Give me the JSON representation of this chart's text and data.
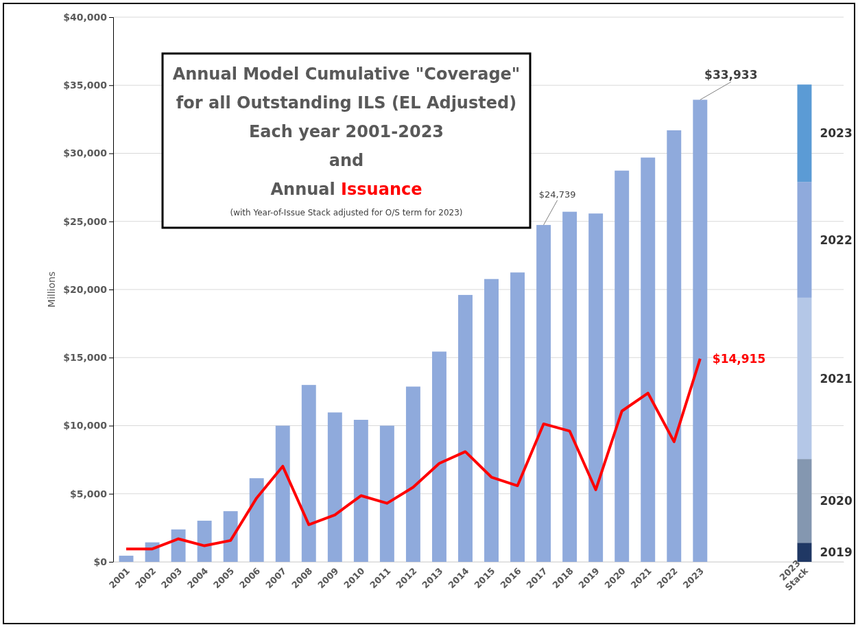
{
  "chart_data": {
    "type": "bar",
    "title": "Annual Model Cumulative \"Coverage\"\nfor all Outstanding ILS (EL Adjusted)\nEach year 2001-2023\nand\nAnnual Issuance",
    "subtitle": "(with Year-of-Issue Stack adjusted for O/S term for 2023)",
    "ylabel": "Millions",
    "categories": [
      "2001",
      "2002",
      "2003",
      "2004",
      "2005",
      "2006",
      "2007",
      "2008",
      "2009",
      "2010",
      "2011",
      "2012",
      "2013",
      "2014",
      "2015",
      "2016",
      "2017",
      "2018",
      "2019",
      "2020",
      "2021",
      "2022",
      "2023",
      null,
      null,
      null,
      "2023 Stack",
      null
    ],
    "stacked": true,
    "series": [
      {
        "color": "#8faadc",
        "values": [
          450,
          1430,
          2380,
          3020,
          3720,
          6140,
          10000,
          12990,
          10970,
          10430,
          10000,
          12870,
          15440,
          19600,
          20770,
          21250,
          24739,
          25710,
          25580,
          28730,
          29690,
          31690,
          33933,
          null,
          null,
          null,
          null,
          null
        ],
        "value_labels": [
          null,
          null,
          null,
          null,
          null,
          null,
          null,
          null,
          null,
          null,
          null,
          null,
          null,
          null,
          null,
          null,
          "$24,739",
          null,
          null,
          null,
          null,
          null,
          "$33,933",
          null,
          null,
          null,
          null,
          null
        ]
      },
      {
        "name": "2019",
        "color": "#203864",
        "values": [
          null,
          null,
          null,
          null,
          null,
          null,
          null,
          null,
          null,
          null,
          null,
          null,
          null,
          null,
          null,
          null,
          null,
          null,
          null,
          null,
          null,
          null,
          null,
          null,
          null,
          null,
          1400,
          null
        ]
      },
      {
        "name": "2020",
        "color": "#8497b0",
        "values": [
          null,
          null,
          null,
          null,
          null,
          null,
          null,
          null,
          null,
          null,
          null,
          null,
          null,
          null,
          null,
          null,
          null,
          null,
          null,
          null,
          null,
          null,
          null,
          null,
          null,
          null,
          6150,
          null
        ]
      },
      {
        "name": "2021",
        "color": "#b4c7e7",
        "values": [
          null,
          null,
          null,
          null,
          null,
          null,
          null,
          null,
          null,
          null,
          null,
          null,
          null,
          null,
          null,
          null,
          null,
          null,
          null,
          null,
          null,
          null,
          null,
          null,
          null,
          null,
          11850,
          null
        ]
      },
      {
        "name": "2022",
        "color": "#8faadc",
        "values": [
          null,
          null,
          null,
          null,
          null,
          null,
          null,
          null,
          null,
          null,
          null,
          null,
          null,
          null,
          null,
          null,
          null,
          null,
          null,
          null,
          null,
          null,
          null,
          null,
          null,
          null,
          8500,
          null
        ]
      },
      {
        "name": "2023",
        "color": "#5b9bd5",
        "values": [
          null,
          null,
          null,
          null,
          null,
          null,
          null,
          null,
          null,
          null,
          null,
          null,
          null,
          null,
          null,
          null,
          null,
          null,
          null,
          null,
          null,
          null,
          null,
          null,
          null,
          null,
          7150,
          null
        ]
      },
      {
        "type": "line",
        "color": "#ff0000",
        "values": [
          950,
          950,
          1690,
          1180,
          1570,
          4690,
          7020,
          2730,
          3450,
          4860,
          4300,
          5480,
          7230,
          8090,
          6220,
          5590,
          10130,
          9600,
          5290,
          11070,
          12390,
          8820,
          14915,
          null,
          null,
          null,
          null,
          null
        ],
        "value_labels": [
          null,
          null,
          null,
          null,
          null,
          null,
          null,
          null,
          null,
          null,
          null,
          null,
          null,
          null,
          null,
          null,
          null,
          null,
          null,
          null,
          null,
          null,
          "$14,915",
          null,
          null,
          null,
          null,
          null
        ]
      }
    ],
    "ylim": [
      0,
      40000
    ],
    "yticks": [
      {
        "value": 0,
        "label": "$0"
      },
      {
        "value": 5000,
        "label": "$5,000"
      },
      {
        "value": 10000,
        "label": "$10,000"
      },
      {
        "value": 15000,
        "label": "$15,000"
      },
      {
        "value": 20000,
        "label": "$20,000"
      },
      {
        "value": 25000,
        "label": "$25,000"
      },
      {
        "value": 30000,
        "label": "$30,000"
      },
      {
        "value": 35000,
        "label": "$35,000"
      },
      {
        "value": 40000,
        "label": "$40,000"
      }
    ],
    "grid": "y"
  }
}
